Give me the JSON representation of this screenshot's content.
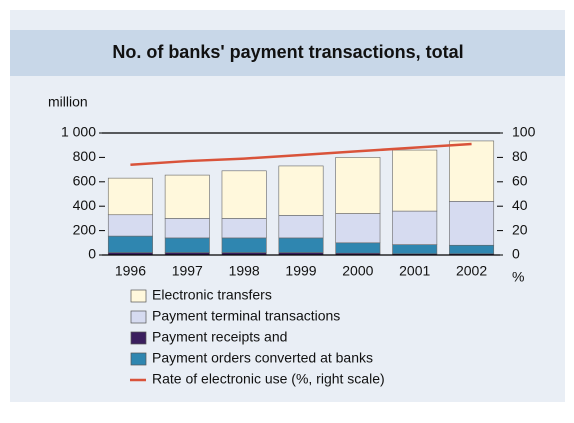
{
  "chart_data": {
    "type": "bar",
    "stacked": true,
    "title": "No. of banks' payment transactions, total",
    "y_label": "million",
    "y2_label": "%",
    "categories": [
      "1996",
      "1997",
      "1998",
      "1999",
      "2000",
      "2001",
      "2002"
    ],
    "series": [
      {
        "name": "Electronic transfers",
        "color": "#fff8dc",
        "values": [
          300,
          355,
          390,
          405,
          460,
          500,
          495
        ]
      },
      {
        "name": "Payment terminal transactions",
        "color": "#d6dbf0",
        "values": [
          175,
          160,
          160,
          185,
          240,
          275,
          360
        ]
      },
      {
        "name": "Payment receipts and",
        "color": "#3b1f5e",
        "values": [
          20,
          20,
          20,
          20,
          15,
          10,
          10
        ]
      },
      {
        "name": "Payment orders converted at banks",
        "color": "#2f86b0",
        "values": [
          135,
          120,
          120,
          120,
          85,
          75,
          70
        ]
      },
      {
        "name": "Rate of electronic use (%, right scale)",
        "color": "#d9533a",
        "type": "line",
        "axis": "y2",
        "values": [
          74,
          77,
          79,
          82,
          85,
          88,
          91
        ]
      }
    ],
    "ylim": [
      0,
      1000
    ],
    "yticks": [
      0,
      200,
      400,
      600,
      800,
      {
        "value": 1000,
        "label": "1 000"
      }
    ],
    "y2lim": [
      0,
      100
    ],
    "y2ticks": [
      0,
      20,
      40,
      60,
      80,
      100
    ],
    "grid": false
  }
}
